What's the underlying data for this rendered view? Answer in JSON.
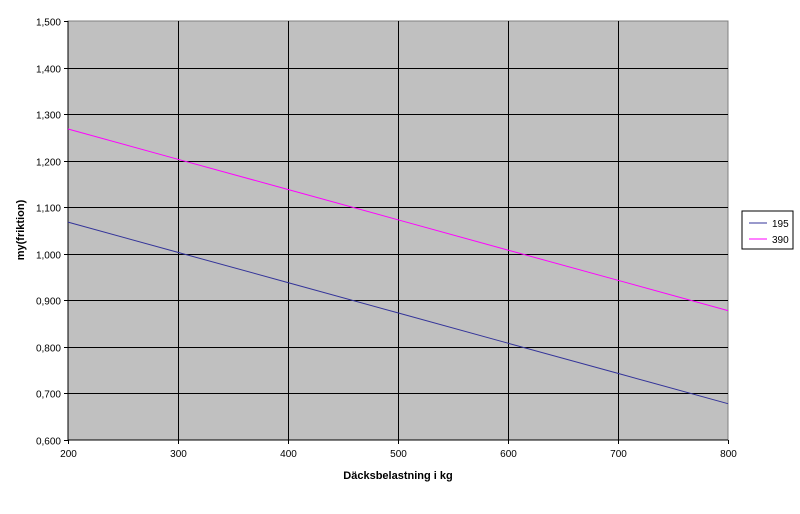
{
  "chart_data": {
    "type": "line",
    "title": "",
    "xlabel": "Däcksbelastning i kg",
    "ylabel": "my(friktion)",
    "xlim": [
      200,
      800
    ],
    "ylim": [
      0.6,
      1.5
    ],
    "x_ticks": [
      "200",
      "300",
      "400",
      "500",
      "600",
      "700",
      "800"
    ],
    "y_ticks": [
      "0,600",
      "0,700",
      "0,800",
      "0,900",
      "1,000",
      "1,100",
      "1,200",
      "1,300",
      "1,400",
      "1,500"
    ],
    "grid": true,
    "plot_background": "#c0c0c0",
    "legend_position": "right",
    "x": [
      200,
      300,
      400,
      500,
      600,
      700,
      800
    ],
    "series": [
      {
        "name": "195",
        "color": "#333399",
        "values": [
          1.068,
          1.003,
          0.938,
          0.873,
          0.808,
          0.743,
          0.678
        ]
      },
      {
        "name": "390",
        "color": "#ff00ff",
        "values": [
          1.268,
          1.203,
          1.138,
          1.073,
          1.008,
          0.943,
          0.878
        ]
      }
    ]
  }
}
